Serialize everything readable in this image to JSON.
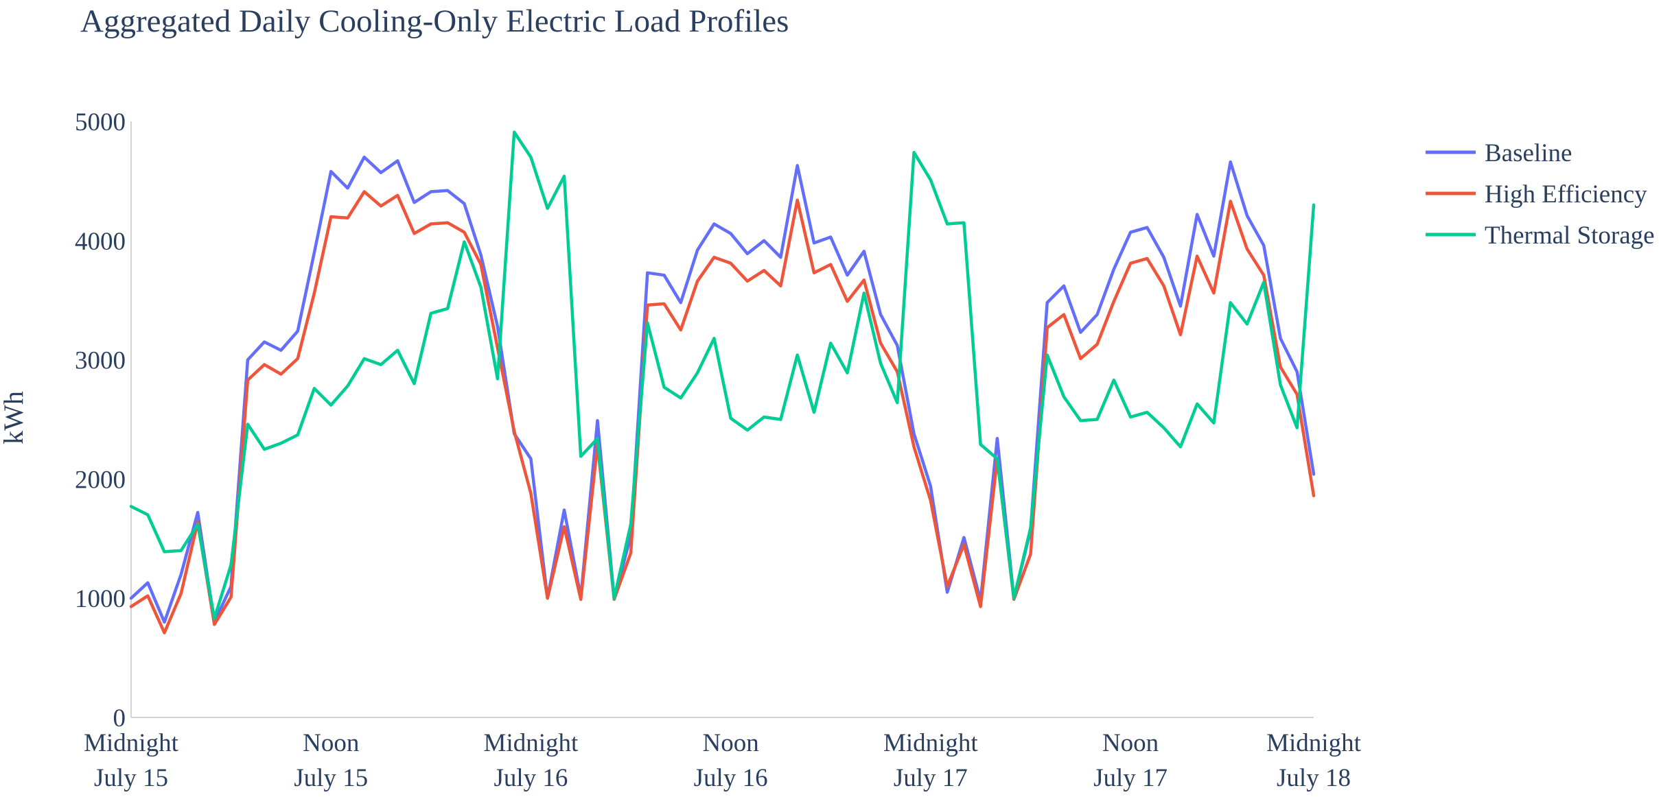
{
  "chart_data": {
    "type": "line",
    "title": "Aggregated Daily Cooling-Only Electric Load Profiles",
    "ylabel": "kWh",
    "xlabel": "",
    "ylim": [
      0,
      5000
    ],
    "yticks": [
      0,
      1000,
      2000,
      3000,
      4000,
      5000
    ],
    "xticks": [
      {
        "hour": 0,
        "line1": "Midnight",
        "line2": "July 15"
      },
      {
        "hour": 12,
        "line1": "Noon",
        "line2": "July 15"
      },
      {
        "hour": 24,
        "line1": "Midnight",
        "line2": "July 16"
      },
      {
        "hour": 36,
        "line1": "Noon",
        "line2": "July 16"
      },
      {
        "hour": 48,
        "line1": "Midnight",
        "line2": "July 17"
      },
      {
        "hour": 60,
        "line1": "Noon",
        "line2": "July 17"
      },
      {
        "hour": 71,
        "line1": "Midnight",
        "line2": "July 18"
      }
    ],
    "x_hours": [
      0,
      1,
      2,
      3,
      4,
      5,
      6,
      7,
      8,
      9,
      10,
      11,
      12,
      13,
      14,
      15,
      16,
      17,
      18,
      19,
      20,
      21,
      22,
      23,
      24,
      25,
      26,
      27,
      28,
      29,
      30,
      31,
      32,
      33,
      34,
      35,
      36,
      37,
      38,
      39,
      40,
      41,
      42,
      43,
      44,
      45,
      46,
      47,
      48,
      49,
      50,
      51,
      52,
      53,
      54,
      55,
      56,
      57,
      58,
      59,
      60,
      61,
      62,
      63,
      64,
      65,
      66,
      67,
      68,
      69,
      70,
      71
    ],
    "legend_position": "top-right",
    "grid": false,
    "series": [
      {
        "name": "Baseline",
        "color": "#636efa",
        "values": [
          1000,
          1130,
          800,
          1200,
          1720,
          800,
          1100,
          3000,
          3150,
          3080,
          3240,
          3900,
          4580,
          4440,
          4700,
          4570,
          4670,
          4320,
          4410,
          4420,
          4310,
          3880,
          3280,
          2380,
          2170,
          1000,
          1740,
          1010,
          2490,
          1000,
          1520,
          3730,
          3710,
          3480,
          3920,
          4140,
          4060,
          3890,
          4000,
          3860,
          4630,
          3980,
          4030,
          3710,
          3910,
          3380,
          3120,
          2380,
          1940,
          1050,
          1510,
          980,
          2340,
          1000,
          1570,
          3480,
          3620,
          3230,
          3380,
          3760,
          4070,
          4110,
          3860,
          3450,
          4220,
          3870,
          4660,
          4210,
          3960,
          3180,
          2900,
          2040
        ]
      },
      {
        "name": "High Efficiency",
        "color": "#ef553b",
        "values": [
          930,
          1020,
          710,
          1040,
          1640,
          780,
          1010,
          2830,
          2960,
          2880,
          3010,
          3560,
          4200,
          4190,
          4410,
          4290,
          4380,
          4060,
          4140,
          4150,
          4070,
          3800,
          3100,
          2400,
          1880,
          1000,
          1600,
          990,
          2290,
          990,
          1380,
          3460,
          3470,
          3250,
          3660,
          3860,
          3810,
          3660,
          3750,
          3620,
          4340,
          3730,
          3800,
          3490,
          3670,
          3140,
          2900,
          2270,
          1820,
          1100,
          1450,
          930,
          2170,
          990,
          1370,
          3270,
          3380,
          3010,
          3130,
          3490,
          3810,
          3850,
          3620,
          3210,
          3870,
          3560,
          4330,
          3930,
          3710,
          2940,
          2710,
          1860
        ]
      },
      {
        "name": "Thermal Storage",
        "color": "#00cc96",
        "values": [
          1770,
          1700,
          1390,
          1400,
          1620,
          830,
          1280,
          2460,
          2250,
          2300,
          2370,
          2760,
          2620,
          2780,
          3010,
          2960,
          3080,
          2800,
          3390,
          3430,
          3990,
          3610,
          2840,
          4910,
          4700,
          4270,
          4540,
          2190,
          2340,
          1000,
          1620,
          3310,
          2770,
          2680,
          2890,
          3180,
          2510,
          2410,
          2520,
          2500,
          3040,
          2560,
          3140,
          2890,
          3560,
          2970,
          2640,
          4740,
          4510,
          4140,
          4150,
          2290,
          2170,
          1000,
          1590,
          3040,
          2690,
          2490,
          2500,
          2830,
          2520,
          2560,
          2430,
          2270,
          2630,
          2470,
          3480,
          3300,
          3650,
          2790,
          2430,
          4300
        ]
      }
    ]
  }
}
